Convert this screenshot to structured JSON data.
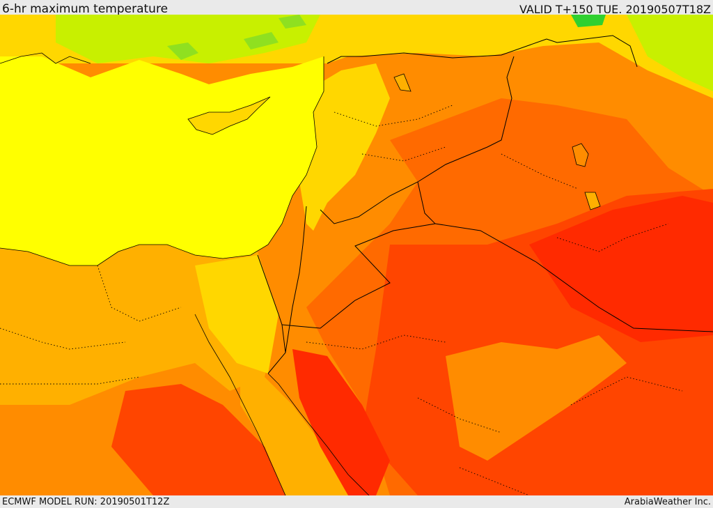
{
  "header": {
    "title": "6-hr maximum temperature",
    "valid": "VALID T+150 TUE. 20190507T18Z"
  },
  "footer": {
    "model_run": "ECMWF MODEL RUN: 20190501T12Z",
    "credit": "ArabiaWeather Inc."
  },
  "colors": {
    "sea": "#ffff00",
    "cool": "#c8f000",
    "cooler": "#8fe020",
    "coolest": "#30d030",
    "warm_1": "#ffd700",
    "warm_2": "#ffb000",
    "warm_3": "#ff8c00",
    "hot_1": "#ff6a00",
    "hot_2": "#ff4500",
    "hot_3": "#ff2a00",
    "border": "#000000"
  }
}
